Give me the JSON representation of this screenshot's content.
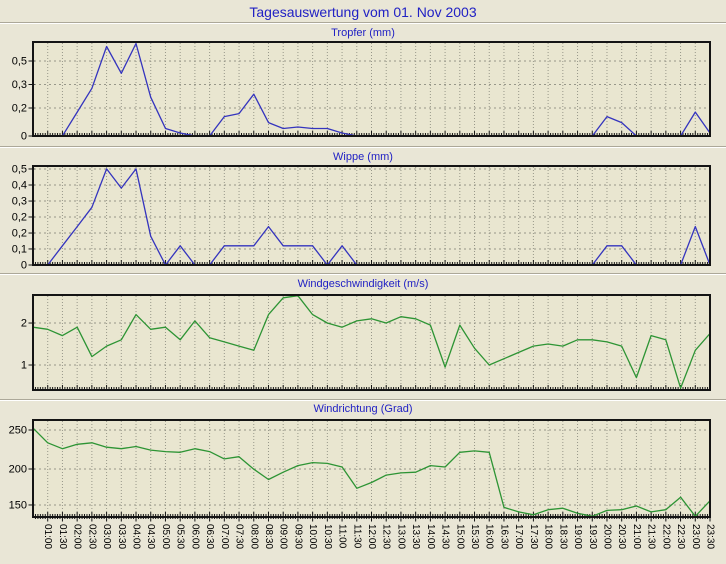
{
  "page": {
    "title": "Tagesauswertung vom 01. Nov 2003",
    "background": "#e9e6d6",
    "plot_background": "#e9e6d0",
    "title_color": "#2121c4",
    "grid_color": "#979789",
    "border_color": "#141414"
  },
  "x_axis": {
    "labels": [
      "01:00",
      "01:30",
      "02:00",
      "02:30",
      "03:00",
      "03:30",
      "04:00",
      "04:30",
      "05:00",
      "05:30",
      "06:00",
      "06:30",
      "07:00",
      "07:30",
      "08:00",
      "08:30",
      "09:00",
      "09:30",
      "10:00",
      "10:30",
      "11:00",
      "11:30",
      "12:00",
      "12:30",
      "13:00",
      "13:30",
      "14:00",
      "14:30",
      "15:00",
      "15:30",
      "16:00",
      "16:30",
      "17:00",
      "17:30",
      "18:00",
      "18:30",
      "19:00",
      "19:30",
      "20:00",
      "20:30",
      "21:00",
      "21:30",
      "22:00",
      "22:30",
      "23:00",
      "23:30"
    ],
    "times": [
      "00:30",
      "01:00",
      "01:30",
      "02:00",
      "02:30",
      "03:00",
      "03:30",
      "04:00",
      "04:30",
      "05:00",
      "05:30",
      "06:00",
      "06:30",
      "07:00",
      "07:30",
      "08:00",
      "08:30",
      "09:00",
      "09:30",
      "10:00",
      "10:30",
      "11:00",
      "11:30",
      "12:00",
      "12:30",
      "13:00",
      "13:30",
      "14:00",
      "14:30",
      "15:00",
      "15:30",
      "16:00",
      "16:30",
      "17:00",
      "17:30",
      "18:00",
      "18:30",
      "19:00",
      "19:30",
      "20:00",
      "20:30",
      "21:00",
      "21:30",
      "22:00",
      "22:30",
      "23:00",
      "23:30"
    ]
  },
  "chart_data": [
    {
      "type": "line",
      "title": "Tropfer (mm)",
      "color": "#3434be",
      "ylim": [
        0,
        0.63
      ],
      "y_ticks": [
        {
          "label": "0,5",
          "pos": 0.202
        },
        {
          "label": "0,3",
          "pos": 0.452
        },
        {
          "label": "0,2",
          "pos": 0.702
        },
        {
          "label": "0",
          "pos": 1.0
        }
      ],
      "values": [
        0,
        0,
        0,
        0.16,
        0.32,
        0.6,
        0.42,
        0.62,
        0.26,
        0.05,
        0.02,
        0,
        0,
        0.13,
        0.15,
        0.28,
        0.09,
        0.05,
        0.06,
        0.05,
        0.05,
        0.02,
        0,
        0,
        0,
        0,
        0,
        0,
        0,
        0,
        0,
        0,
        0,
        0,
        0,
        0,
        0,
        0,
        0,
        0.13,
        0.09,
        0,
        0,
        0,
        0,
        0.16,
        0.02
      ]
    },
    {
      "type": "line",
      "title": "Wippe (mm)",
      "color": "#3434be",
      "ylim": [
        0,
        0.515
      ],
      "y_ticks": [
        {
          "label": "0,5",
          "pos": 0.03
        },
        {
          "label": "0,4",
          "pos": 0.192
        },
        {
          "label": "0,3",
          "pos": 0.354
        },
        {
          "label": "0,2",
          "pos": 0.515
        },
        {
          "label": "0,2",
          "pos": 0.677
        },
        {
          "label": "0,1",
          "pos": 0.838
        },
        {
          "label": "0",
          "pos": 1.0
        }
      ],
      "values": [
        0,
        0,
        0.1,
        0.2,
        0.3,
        0.5,
        0.4,
        0.5,
        0.15,
        0,
        0.1,
        0,
        0,
        0.1,
        0.1,
        0.1,
        0.2,
        0.1,
        0.1,
        0.1,
        0,
        0.1,
        0,
        0,
        0,
        0,
        0,
        0,
        0,
        0,
        0,
        0,
        0,
        0,
        0,
        0,
        0,
        0,
        0,
        0.1,
        0.1,
        0,
        0,
        0,
        0,
        0.2,
        0
      ]
    },
    {
      "type": "line",
      "title": "Windgeschwindigkeit (m/s)",
      "color": "#2d9434",
      "ylim": [
        0.405,
        2.667
      ],
      "y_ticks": [
        {
          "label": "2",
          "pos": 0.295
        },
        {
          "label": "1",
          "pos": 0.737
        }
      ],
      "values": [
        1.9,
        1.85,
        1.7,
        1.9,
        1.2,
        1.45,
        1.6,
        2.2,
        1.85,
        1.9,
        1.6,
        2.05,
        1.65,
        1.55,
        1.45,
        1.35,
        2.2,
        2.6,
        2.65,
        2.2,
        2.0,
        1.9,
        2.05,
        2.1,
        2.0,
        2.15,
        2.1,
        1.95,
        0.95,
        1.95,
        1.4,
        1.0,
        1.15,
        1.3,
        1.45,
        1.5,
        1.45,
        1.6,
        1.6,
        1.55,
        1.45,
        0.7,
        1.7,
        1.6,
        0.45,
        1.35,
        1.75
      ]
    },
    {
      "type": "line",
      "title": "Windrichtung (Grad)",
      "color": "#2d9434",
      "ylim": [
        131,
        263
      ],
      "y_ticks": [
        {
          "label": "250",
          "pos": 0.103
        },
        {
          "label": "200",
          "pos": 0.505
        },
        {
          "label": "150",
          "pos": 0.876
        }
      ],
      "values": [
        252,
        232,
        224,
        230,
        232,
        226,
        224,
        227,
        222,
        220,
        219,
        224,
        220,
        210,
        213,
        196,
        182,
        192,
        201,
        205,
        204,
        199,
        170,
        178,
        188,
        191,
        192,
        201,
        199,
        219,
        221,
        219,
        144,
        138,
        134,
        141,
        143,
        136,
        132,
        140,
        141,
        146,
        138,
        141,
        158,
        132,
        153
      ]
    }
  ]
}
